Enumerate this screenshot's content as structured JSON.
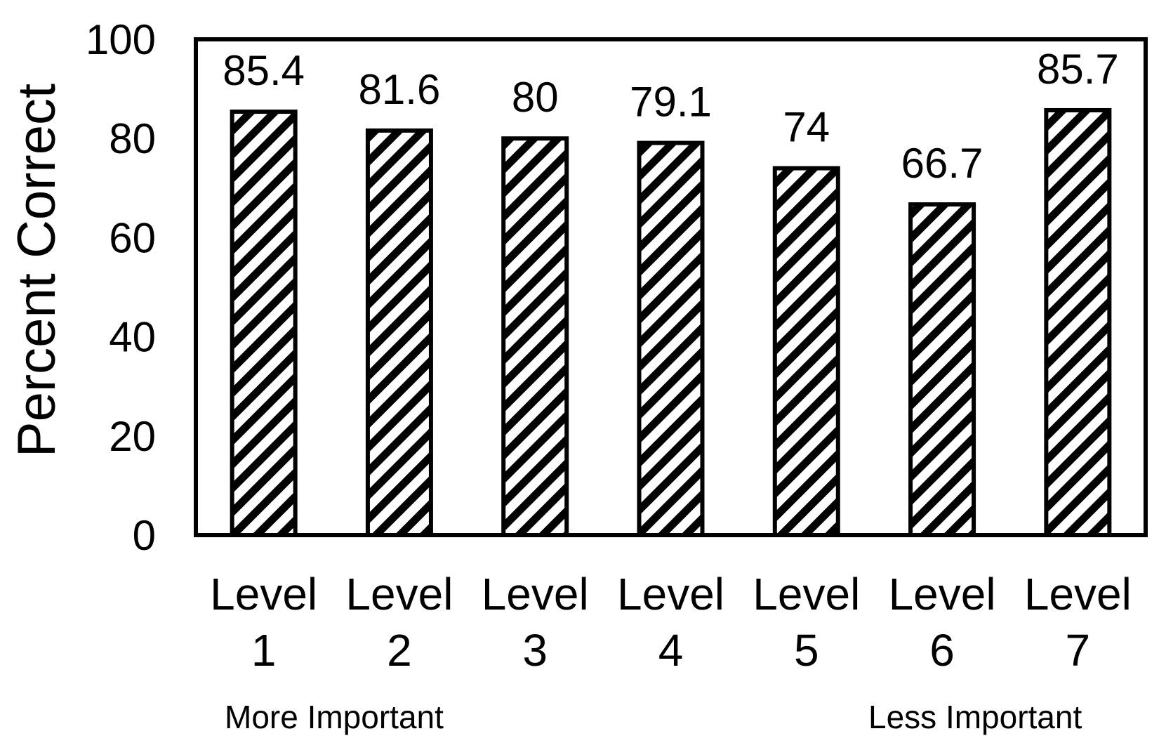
{
  "chart_data": {
    "type": "bar",
    "categories": [
      [
        "Level",
        "1"
      ],
      [
        "Level",
        "2"
      ],
      [
        "Level",
        "3"
      ],
      [
        "Level",
        "4"
      ],
      [
        "Level",
        "5"
      ],
      [
        "Level",
        "6"
      ],
      [
        "Level",
        "7"
      ]
    ],
    "values": [
      85.4,
      81.6,
      80,
      79.1,
      74,
      66.7,
      85.7
    ],
    "data_labels": [
      "85.4",
      "81.6",
      "80",
      "79.1",
      "74",
      "66.7",
      "85.7"
    ],
    "title": "",
    "xlabel": "",
    "ylabel": "Percent Correct",
    "ylim": [
      0,
      100
    ],
    "yticks": [
      0,
      20,
      40,
      60,
      80,
      100
    ],
    "grid": false,
    "legend": "none",
    "bar_fill": "diagonal hatch",
    "colors": {
      "bar_stroke": "#000000",
      "hatch": "#000000",
      "background": "#ffffff",
      "frame": "#000000"
    },
    "annotations": {
      "left": "More Important",
      "right": "Less Important"
    }
  }
}
